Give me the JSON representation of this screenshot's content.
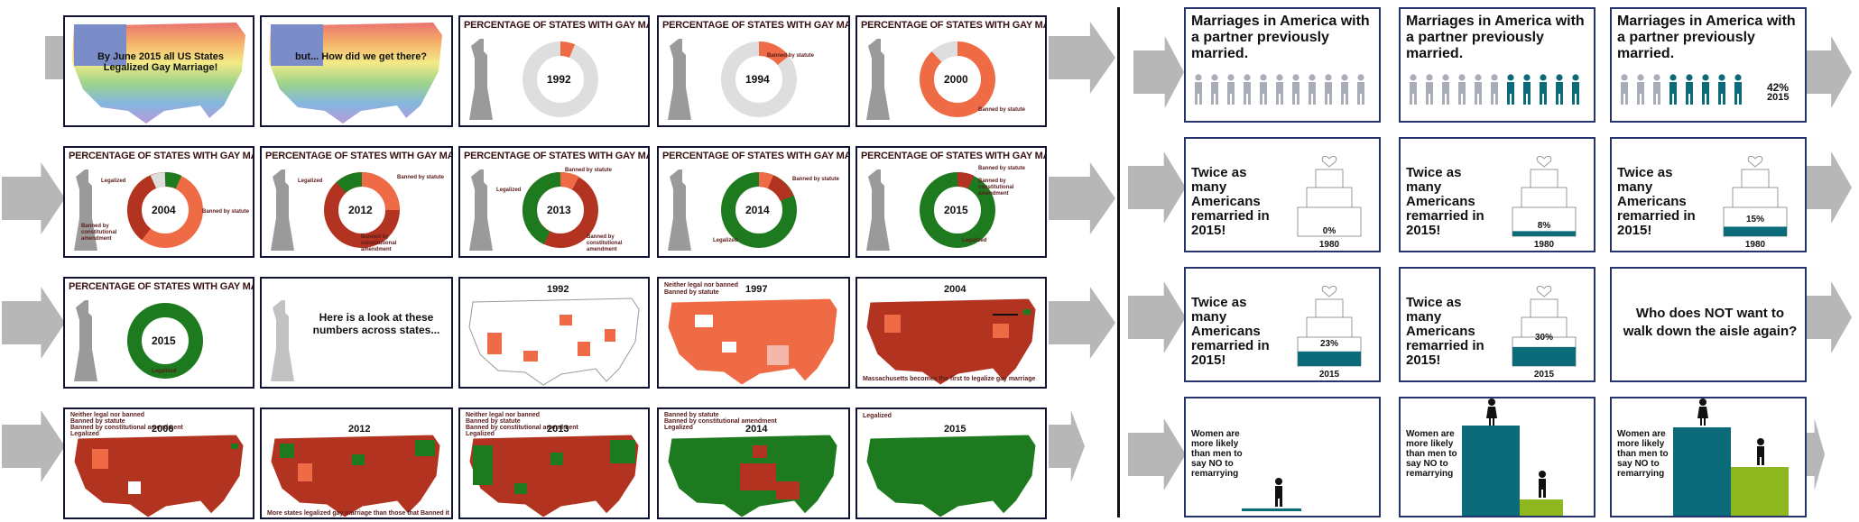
{
  "colors": {
    "green": "#1e7a1e",
    "red": "#b23420",
    "orange": "#ee6b45",
    "grey": "#dedede",
    "teal": "#0b6b78",
    "lime": "#8fb820",
    "arrow": "#b7b7b7"
  },
  "left": {
    "row1": {
      "p1_text": "By June 2015 all US States Legalized Gay Marriage!",
      "p2_text": "but... How did we get there?",
      "donut_title": "PERCENTAGE OF STATES WITH GAY MARRIAGE",
      "y1992": "1992",
      "y1994": "1994",
      "y2000": "2000",
      "banned_statute": "Banned by statute"
    },
    "row2": {
      "title": "PERCENTAGE OF STATES WITH GAY MARRIAGE",
      "years": [
        "2004",
        "2012",
        "2013",
        "2014",
        "2015"
      ],
      "legalized": "Legalized",
      "banned_statute": "Banned by statute",
      "banned_const": "Banned by constitutional amendment"
    },
    "row3": {
      "title": "PERCENTAGE OF STATES WITH GAY MARRIAGE",
      "y2015": "2015",
      "legalized": "Legalized",
      "look_text": "Here is a look at these numbers across states...",
      "m1992": "1992",
      "m1997": "1997",
      "m2004": "2004",
      "mass_caption": "Massachusetts becomes the first to legalize gay marriage",
      "legend1": "Neither legal nor banned",
      "legend2": "Banned by statute"
    },
    "row4": {
      "years": [
        "2006",
        "2012",
        "2013",
        "2014",
        "2015"
      ],
      "caption": "More states legalized gay marriage than those that Banned it",
      "legend": [
        "Neither legal nor banned",
        "Banned by statute",
        "Banned by constitutional amendment",
        "Legalized"
      ]
    }
  },
  "right": {
    "married_title": "Marriages in America with a partner previously married.",
    "pct_label": "42%",
    "pct_year": "2015",
    "twice_text": "Twice as many Americans remarried in 2015!",
    "cakes": [
      {
        "value": "0%",
        "year": "1980",
        "fill": 0
      },
      {
        "value": "8%",
        "year": "1980",
        "fill": 0.08
      },
      {
        "value": "15%",
        "year": "1980",
        "fill": 0.15
      },
      {
        "value": "23%",
        "year": "2015",
        "fill": 0.23
      },
      {
        "value": "30%",
        "year": "2015",
        "fill": 0.3
      }
    ],
    "who_text": "Who does NOT want to walk down the aisle again?",
    "women_text": "Women are more likely than men to say NO to remarrying"
  }
}
